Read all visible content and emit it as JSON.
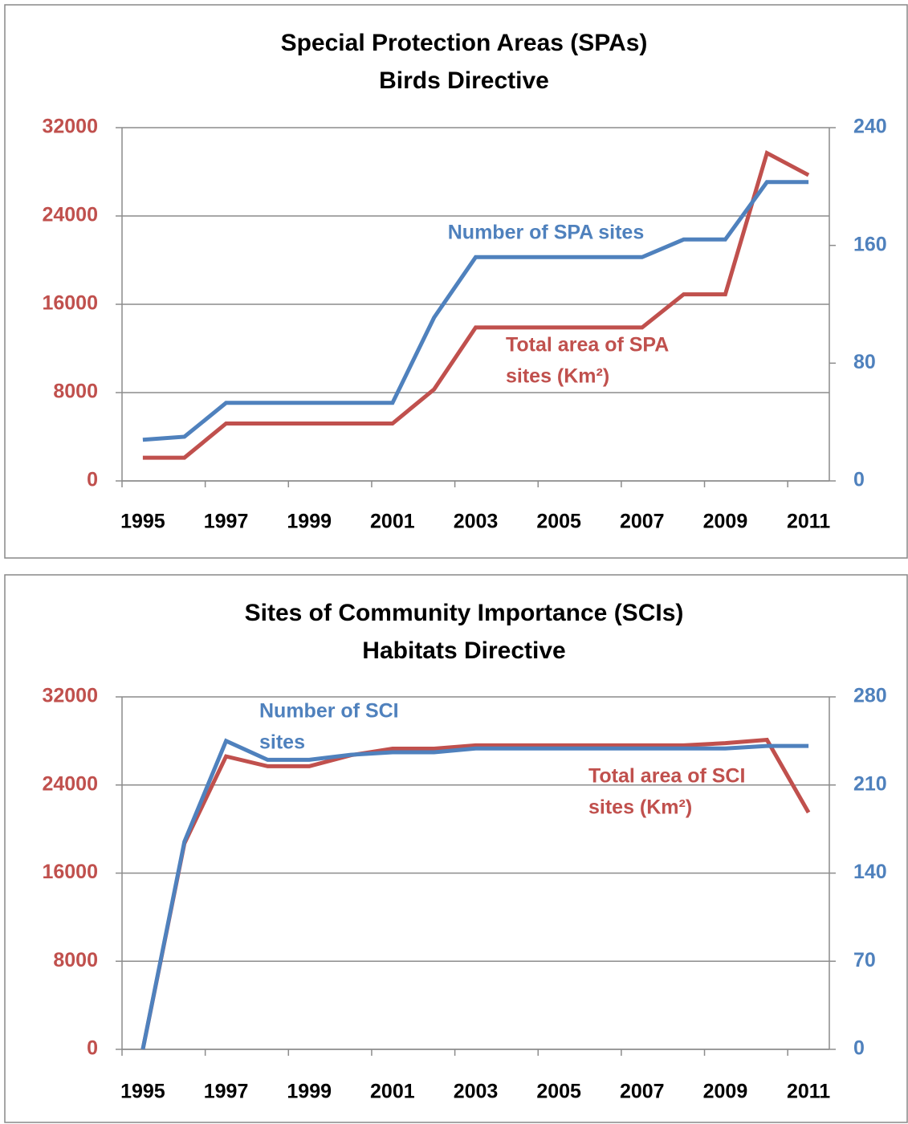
{
  "chart_data": [
    {
      "type": "line",
      "title": "Special Protection Areas (SPAs)",
      "subtitle": "Birds Directive",
      "categories": [
        "1995",
        null,
        "1997",
        null,
        "1999",
        null,
        "2001",
        null,
        "2003",
        null,
        "2005",
        null,
        "2007",
        null,
        "2009",
        null,
        "2011"
      ],
      "series": [
        {
          "name": [
            "Total area of SPA",
            "sites (Km²)"
          ],
          "color": "#c0504d",
          "axis": "y",
          "values": [
            2100,
            2100,
            5200,
            5200,
            5200,
            5200,
            5200,
            8300,
            13900,
            13900,
            13900,
            13900,
            13900,
            16900,
            16900,
            29700,
            27700
          ]
        },
        {
          "name": [
            "Number of SPA sites"
          ],
          "color": "#4f81bd",
          "axis": "y2",
          "values": [
            28,
            30,
            53,
            53,
            53,
            53,
            53,
            111,
            152,
            152,
            152,
            152,
            152,
            164,
            164,
            203,
            203
          ]
        }
      ],
      "ylim": [
        0,
        32000
      ],
      "yticks": [
        0,
        8000,
        16000,
        24000,
        32000
      ],
      "y2lim": [
        0,
        240
      ],
      "y2ticks": [
        0,
        80,
        160,
        240
      ],
      "grid": true,
      "ycolor": "#c0504d",
      "y2color": "#4f81bd"
    },
    {
      "type": "line",
      "title": "Sites of Community Importance (SCIs)",
      "subtitle": "Habitats Directive",
      "categories": [
        "1995",
        null,
        "1997",
        null,
        "1999",
        null,
        "2001",
        null,
        "2003",
        null,
        "2005",
        null,
        "2007",
        null,
        "2009",
        null,
        "2011"
      ],
      "series": [
        {
          "name": [
            "Total area of SCI",
            "sites (Km²)"
          ],
          "color": "#c0504d",
          "axis": "y",
          "values": [
            0,
            18700,
            26600,
            25700,
            25700,
            26700,
            27300,
            27300,
            27600,
            27600,
            27600,
            27600,
            27600,
            27600,
            27800,
            28100,
            21500
          ]
        },
        {
          "name": [
            "Number of SCI",
            "sites"
          ],
          "color": "#4f81bd",
          "axis": "y2",
          "values": [
            0,
            165,
            245,
            230,
            230,
            234,
            236,
            236,
            239,
            239,
            239,
            239,
            239,
            239,
            239,
            241,
            241
          ]
        }
      ],
      "ylim": [
        0,
        32000
      ],
      "yticks": [
        0,
        8000,
        16000,
        24000,
        32000
      ],
      "y2lim": [
        0,
        280
      ],
      "y2ticks": [
        0,
        70,
        140,
        210,
        280
      ],
      "grid": true,
      "ycolor": "#c0504d",
      "y2color": "#4f81bd"
    }
  ]
}
